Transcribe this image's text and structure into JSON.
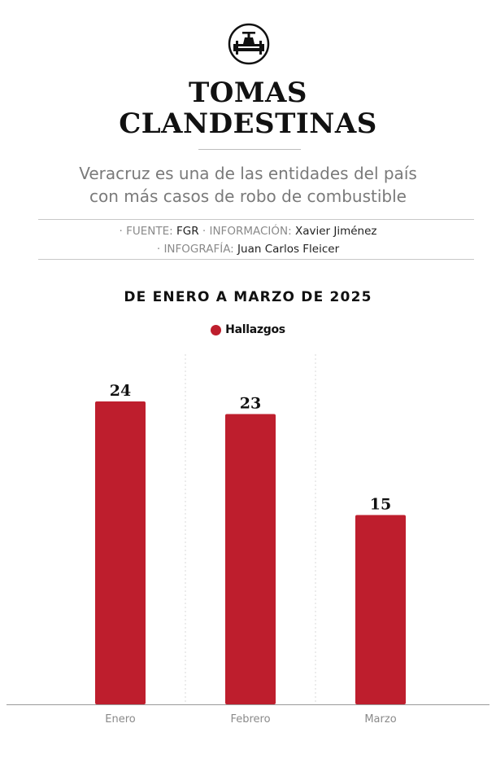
{
  "header": {
    "icon": "pipeline-valve-icon",
    "title_line1": "TOMAS",
    "title_line2": "CLANDESTINAS",
    "subtitle_line1": "Veracruz es una de las entidades del país",
    "subtitle_line2": "con más casos de robo de combustible"
  },
  "credits": {
    "source_label": "· FUENTE:",
    "source_value": "FGR",
    "info_label": "· INFORMACIÓN:",
    "info_value": "Xavier Jiménez",
    "graphic_label": "· INFOGRAFÍA:",
    "graphic_value": "Juan Carlos Fleicer"
  },
  "colors": {
    "accent": "#be1e2d"
  },
  "chart_data": {
    "type": "bar",
    "title": "DE ENERO A MARZO DE 2025",
    "categories": [
      "Enero",
      "Febrero",
      "Marzo"
    ],
    "series": [
      {
        "name": "Hallazgos",
        "values": [
          24,
          23,
          15
        ]
      }
    ],
    "ylim": [
      0,
      24
    ],
    "legend": "top-center",
    "grid": "vertical dashed separators",
    "data_labels": true
  }
}
